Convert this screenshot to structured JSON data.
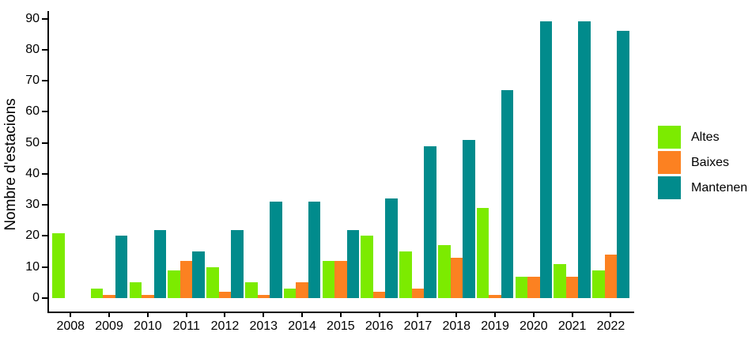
{
  "chart_data": {
    "type": "bar",
    "title": "",
    "xlabel": "",
    "ylabel": "Nombre d'estacions",
    "categories": [
      "2008",
      "2009",
      "2010",
      "2011",
      "2012",
      "2013",
      "2014",
      "2015",
      "2016",
      "2017",
      "2018",
      "2019",
      "2020",
      "2021",
      "2022"
    ],
    "series": [
      {
        "name": "Altes",
        "color": "#7CEB00",
        "values": [
          21,
          3,
          5,
          9,
          10,
          5,
          3,
          12,
          20,
          15,
          17,
          29,
          7,
          11,
          9
        ]
      },
      {
        "name": "Baixes",
        "color": "#FC8121",
        "values": [
          0,
          1,
          1,
          12,
          2,
          1,
          5,
          12,
          2,
          3,
          13,
          1,
          7,
          7,
          14
        ]
      },
      {
        "name": "Mantenen",
        "color": "#018B8C",
        "values": [
          0,
          20,
          22,
          15,
          22,
          31,
          31,
          22,
          32,
          49,
          51,
          67,
          89,
          89,
          86
        ]
      }
    ],
    "ylim": [
      0,
      90
    ],
    "yticks": [
      0,
      10,
      20,
      30,
      40,
      50,
      60,
      70,
      80,
      90
    ],
    "grid": false,
    "legend_position": "right",
    "axis_color": "#000000",
    "background_color": "#FFFFFF"
  }
}
